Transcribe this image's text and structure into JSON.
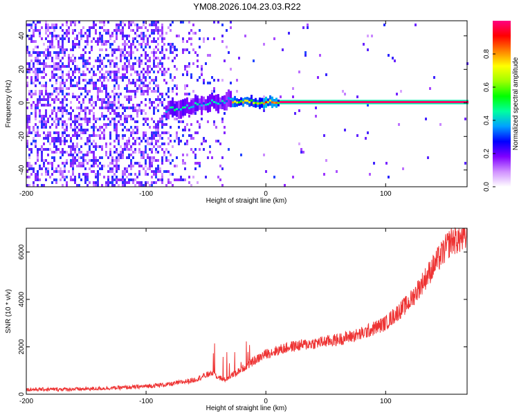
{
  "title": "YM08.2026.104.23.03.R22",
  "chart_data": [
    {
      "type": "heatmap",
      "name": "spectrogram",
      "xlabel": "Height of straight line (km)",
      "ylabel": "Frequency (Hz)",
      "xlim": [
        -200,
        168
      ],
      "ylim": [
        -50,
        49
      ],
      "xticks": [
        -200,
        -100,
        0,
        100
      ],
      "xtick_labels": [
        "-200",
        "-100",
        "0",
        "100"
      ],
      "yticks": [
        -40,
        -20,
        0,
        20,
        40
      ],
      "ytick_labels": [
        "-40",
        "-20",
        "0",
        "20",
        "40"
      ],
      "line_frequency": 0.5,
      "features": [
        {
          "x_from": -200,
          "x_to": -85,
          "amplitude": 0.15,
          "desc": "noise"
        },
        {
          "x_from": -85,
          "x_to": -30,
          "amplitude": 0.35,
          "desc": "onset"
        },
        {
          "x_from": -30,
          "x_to": 10,
          "amplitude": 0.65,
          "desc": "strengthening"
        },
        {
          "x_from": 10,
          "x_to": 168,
          "amplitude": 0.98,
          "desc": "carrier"
        }
      ],
      "colorbar": {
        "label": "Normalized spectral amplitude",
        "range": [
          0.0,
          1.0
        ],
        "ticks": [
          0.0,
          0.2,
          0.4,
          0.6,
          0.8
        ],
        "tick_labels": [
          "0.0",
          "0.2",
          "0.4",
          "0.6",
          "0.8"
        ],
        "colors": [
          "#ffffff",
          "#d090ff",
          "#8000ff",
          "#0000ff",
          "#00a0ff",
          "#00ffa0",
          "#00ff00",
          "#a0ff00",
          "#ffff00",
          "#ff8000",
          "#ff0000",
          "#ff0080"
        ]
      }
    },
    {
      "type": "line",
      "name": "snr",
      "xlabel": "Height of straight line (km)",
      "ylabel": "SNR (10 * v/v)",
      "xlim": [
        -200,
        168
      ],
      "ylim": [
        0,
        7000
      ],
      "xticks": [
        -200,
        -100,
        0,
        100
      ],
      "xtick_labels": [
        "-200",
        "-100",
        "0",
        "100"
      ],
      "yticks": [
        0,
        2000,
        4000,
        6000
      ],
      "ytick_labels": [
        "0",
        "2000",
        "4000",
        "6000"
      ],
      "color": "#ee3333",
      "trend": {
        "x": [
          -200,
          -150,
          -110,
          -80,
          -60,
          -45,
          -35,
          -25,
          -10,
          0,
          20,
          40,
          60,
          80,
          100,
          120,
          140,
          155,
          168
        ],
        "y": [
          200,
          220,
          300,
          420,
          600,
          900,
          600,
          900,
          1400,
          1700,
          2000,
          2150,
          2300,
          2550,
          3000,
          3900,
          5400,
          6500,
          6600
        ]
      }
    }
  ]
}
